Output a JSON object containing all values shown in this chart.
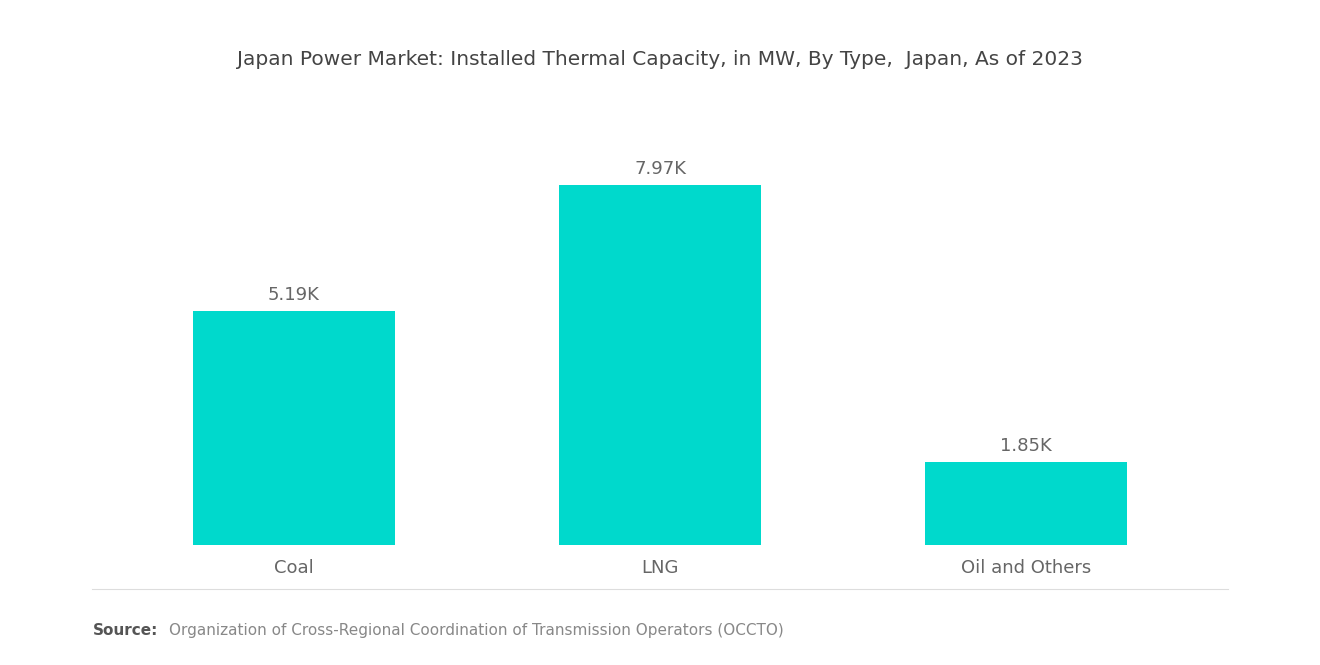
{
  "title": "Japan Power Market: Installed Thermal Capacity, in MW, By Type,  Japan, As of 2023",
  "categories": [
    "Coal",
    "LNG",
    "Oil and Others"
  ],
  "values": [
    5190,
    7970,
    1850
  ],
  "labels": [
    "5.19K",
    "7.97K",
    "1.85K"
  ],
  "bar_color": "#00D9CC",
  "background_color": "#ffffff",
  "title_fontsize": 14.5,
  "label_fontsize": 13,
  "tick_fontsize": 13,
  "source_bold": "Source:",
  "source_text": "Organization of Cross-Regional Coordination of Transmission Operators (OCCTO)",
  "source_fontsize": 11,
  "ylim": [
    0,
    10000
  ],
  "bar_positions": [
    0,
    1,
    2
  ],
  "bar_width": 0.55
}
